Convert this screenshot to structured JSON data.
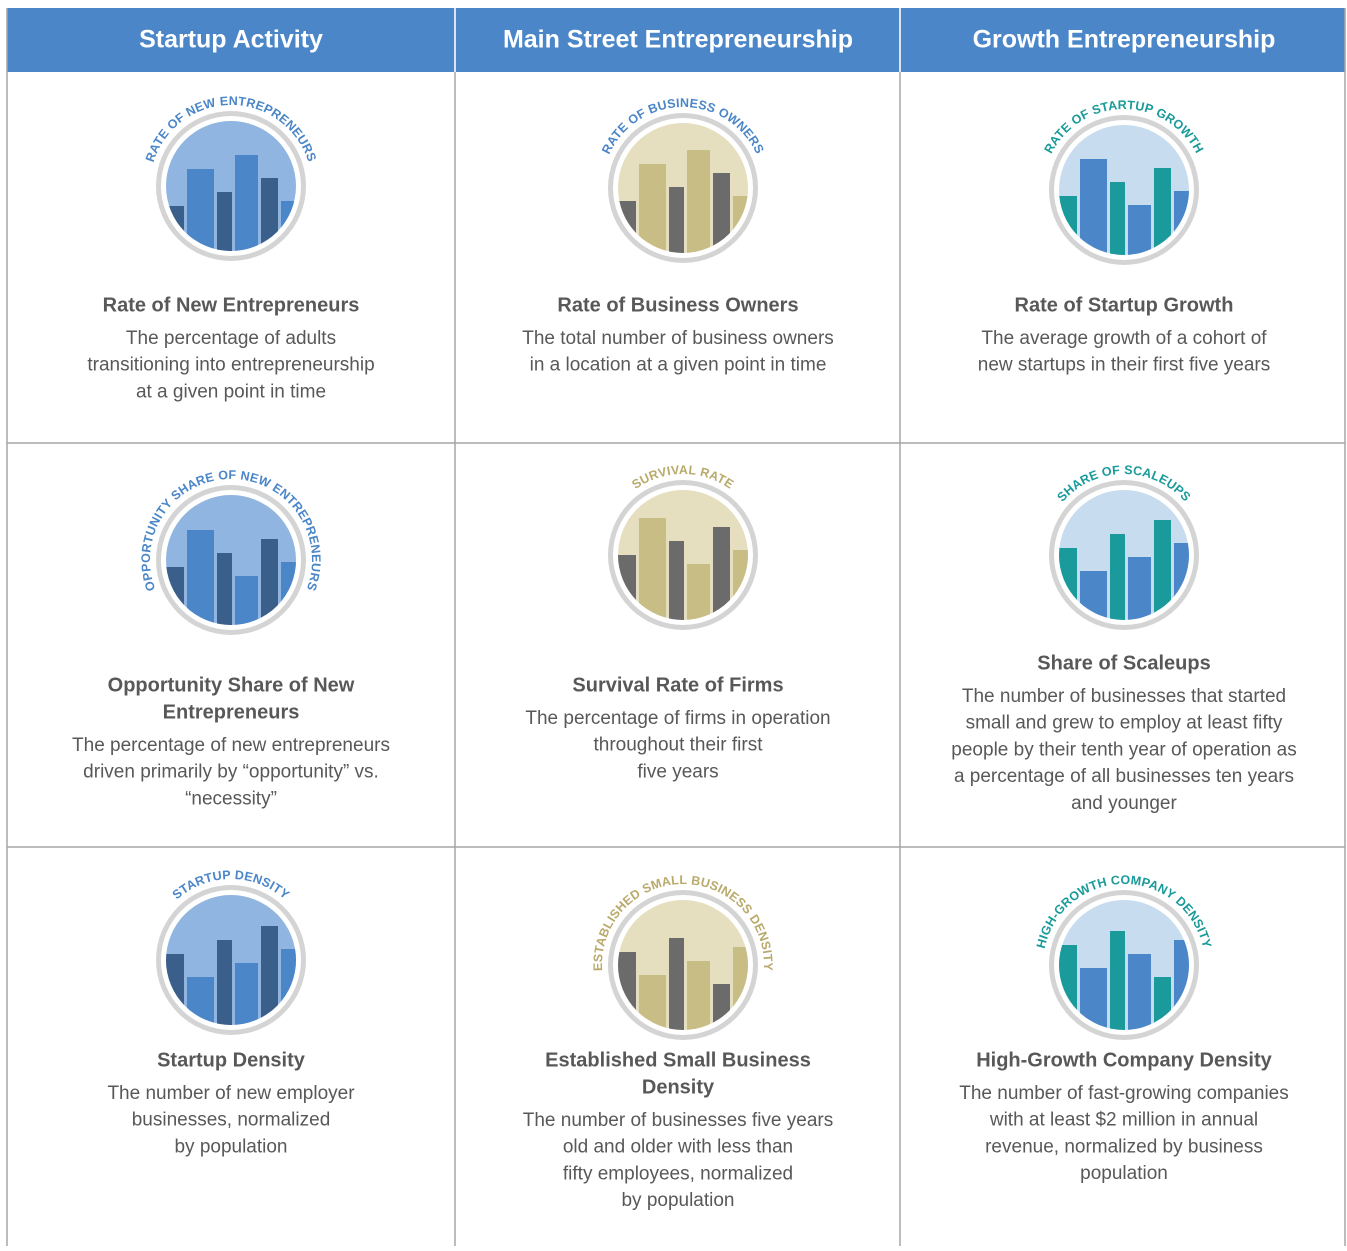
{
  "header": {
    "columns": [
      "Startup Activity",
      "Main Street Entrepreneurship",
      "Growth Entrepreneurship"
    ]
  },
  "rows": [
    [
      {
        "icon_label": "RATE OF NEW ENTREPRENEURS",
        "title": [
          "Rate of New Entrepreneurs"
        ],
        "description": [
          "The percentage of adults",
          "transitioning into entrepreneurship",
          "at a given point in time"
        ]
      },
      {
        "icon_label": "RATE OF BUSINESS OWNERS",
        "title": [
          "Rate of Business Owners"
        ],
        "description": [
          "The total number of business owners",
          "in a location at a given point in time"
        ]
      },
      {
        "icon_label": "RATE OF STARTUP GROWTH",
        "title": [
          "Rate of Startup Growth"
        ],
        "description": [
          "The average growth of a cohort of",
          "new startups in their first five years"
        ]
      }
    ],
    [
      {
        "icon_label": "OPPORTUNITY SHARE OF NEW ENTREPRENEURS",
        "title": [
          "Opportunity Share of New",
          "Entrepreneurs"
        ],
        "description": [
          "The percentage of new entrepreneurs",
          "driven primarily by “opportunity” vs.",
          "“necessity”"
        ]
      },
      {
        "icon_label": "SURVIVAL RATE",
        "title": [
          "Survival Rate of Firms"
        ],
        "description": [
          "The percentage of firms in operation",
          "throughout their first",
          "five years"
        ]
      },
      {
        "icon_label": "SHARE OF SCALEUPS",
        "title": [
          "Share of Scaleups"
        ],
        "description": [
          "The number of businesses that started",
          "small and grew to employ at least fifty",
          "people by their tenth year of operation as",
          "a percentage of all businesses ten years",
          "and younger"
        ]
      }
    ],
    [
      {
        "icon_label": "STARTUP DENSITY",
        "title": [
          "Startup Density"
        ],
        "description": [
          "The number of new employer",
          "businesses, normalized",
          "by population"
        ]
      },
      {
        "icon_label": "ESTABLISHED SMALL BUSINESS DENSITY",
        "title": [
          "Established Small Business",
          "Density"
        ],
        "description": [
          "The number of businesses five years",
          "old and older with less than",
          "fifty employees, normalized",
          "by population"
        ]
      },
      {
        "icon_label": "HIGH-GROWTH COMPANY DENSITY",
        "title": [
          "High-Growth Company Density"
        ],
        "description": [
          "The number of fast-growing companies",
          "with at least $2 million in annual",
          "revenue, normalized by business",
          "population"
        ]
      }
    ]
  ]
}
